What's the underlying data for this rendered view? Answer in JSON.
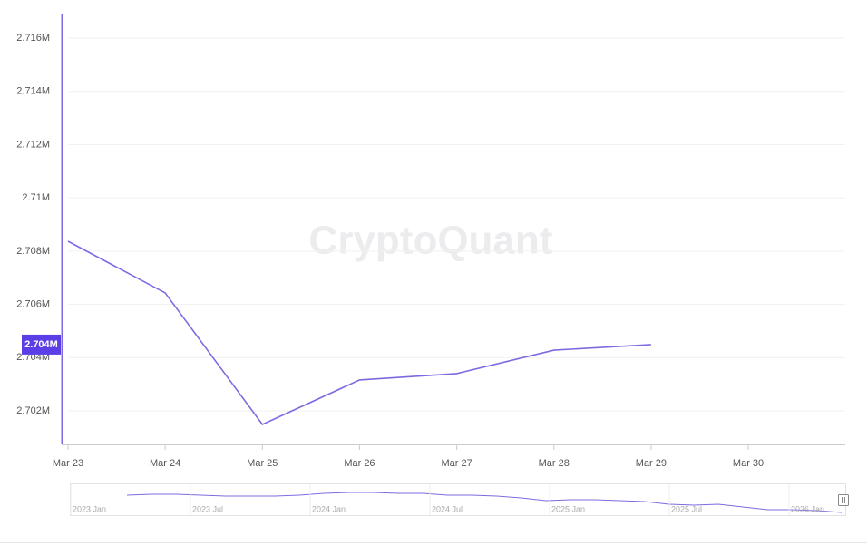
{
  "chart_data": {
    "type": "line",
    "watermark": "CryptoQuant",
    "categories": [
      "Mar 23",
      "Mar 24",
      "Mar 25",
      "Mar 26",
      "Mar 27",
      "Mar 28",
      "Mar 29",
      "Mar 30"
    ],
    "series": [
      {
        "color": "#8069e0",
        "values": [
          2708370,
          2706430,
          2701490,
          2703160,
          2703400,
          2704280,
          2704490,
          null
        ]
      }
    ],
    "last_value_label": "2.704M",
    "ylim": [
      2700740,
      2716920
    ],
    "yticks": [
      {
        "value": 2702000,
        "label": "2.702M"
      },
      {
        "value": 2704000,
        "label": "2.704M"
      },
      {
        "value": 2706000,
        "label": "2.706M"
      },
      {
        "value": 2708000,
        "label": "2.708M"
      },
      {
        "value": 2710000,
        "label": "2.71M"
      },
      {
        "value": 2712000,
        "label": "2.712M"
      },
      {
        "value": 2714000,
        "label": "2.714M"
      },
      {
        "value": 2716000,
        "label": "2.716M"
      }
    ],
    "grid": true,
    "navigator": {
      "labels": [
        "2023 Jan",
        "2023 Jul",
        "2024 Jan",
        "2024 Jul",
        "2025 Jan",
        "2025 Jul",
        "2026 Jan"
      ],
      "ylim": [
        2690000,
        2800000
      ],
      "values": [
        2765400,
        2768600,
        2768600,
        2765400,
        2762300,
        2762300,
        2762300,
        2765400,
        2771800,
        2774900,
        2774900,
        2771800,
        2771800,
        2765400,
        2765400,
        2762300,
        2755900,
        2746600,
        2749700,
        2749700,
        2746600,
        2743400,
        2734000,
        2730900,
        2734000,
        2724600,
        2715100,
        2715100,
        2712000,
        2705700
      ]
    }
  }
}
